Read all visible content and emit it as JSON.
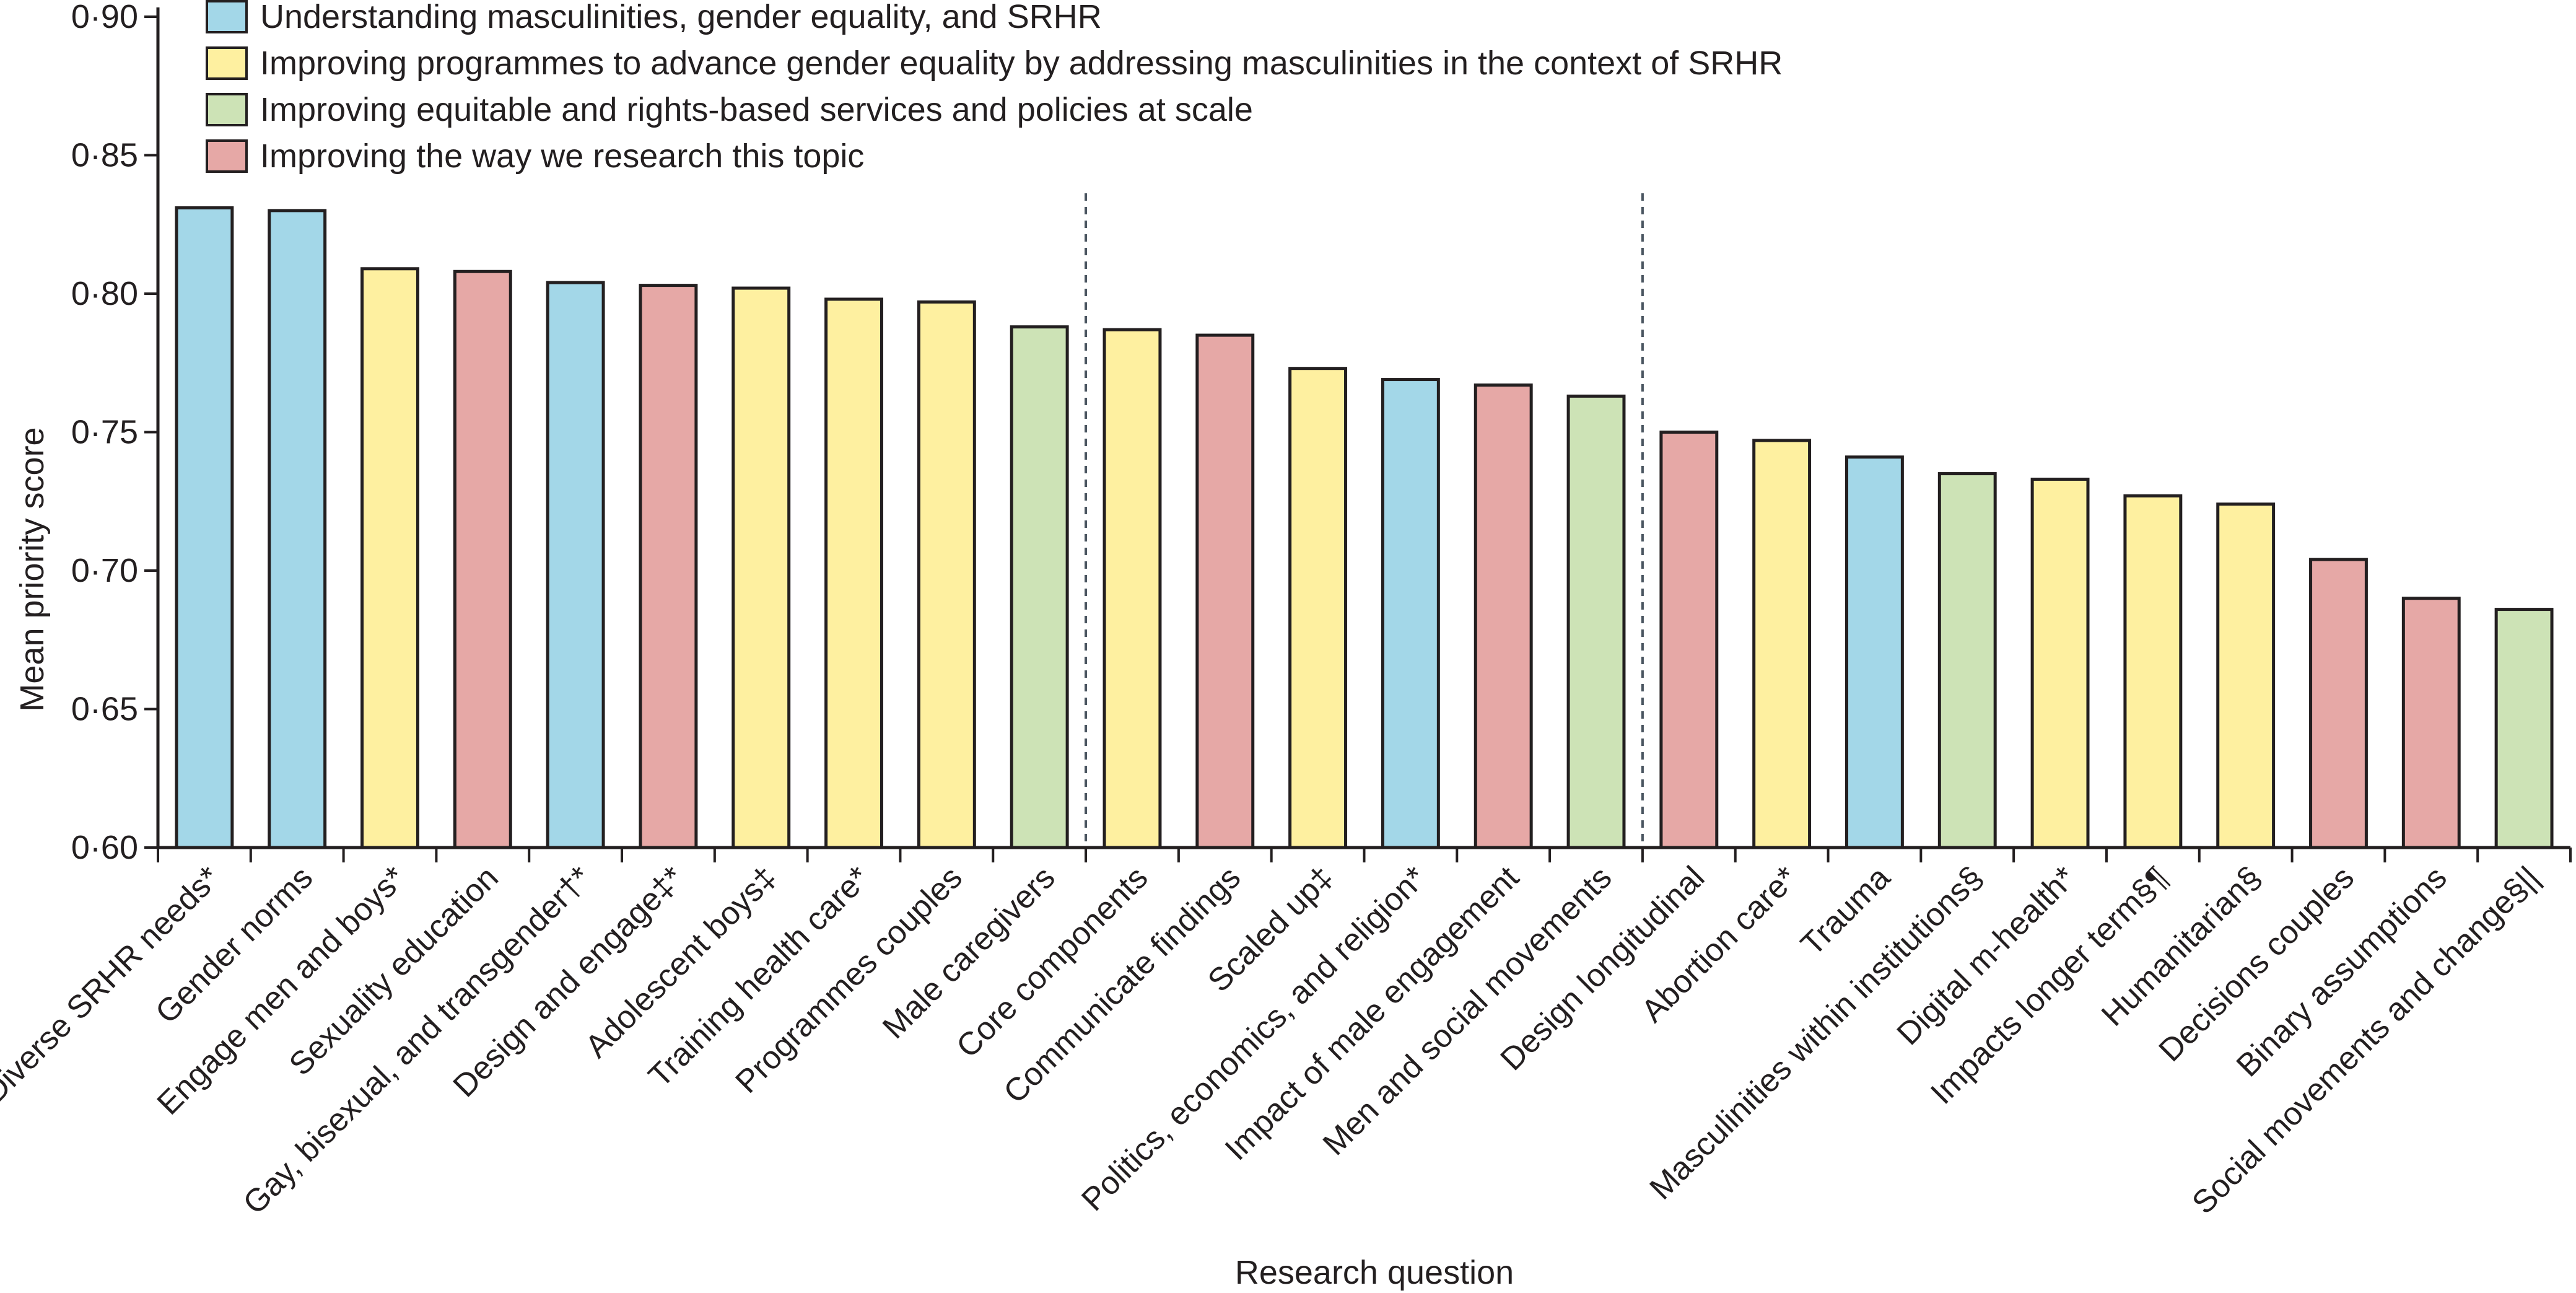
{
  "chart_data": {
    "type": "bar",
    "title": "",
    "xlabel": "Research question",
    "ylabel": "Mean priority score",
    "ylim": [
      0.6,
      0.9
    ],
    "yticks": [
      {
        "value": 0.6,
        "label": "0·60"
      },
      {
        "value": 0.65,
        "label": "0·65"
      },
      {
        "value": 0.7,
        "label": "0·70"
      },
      {
        "value": 0.75,
        "label": "0·75"
      },
      {
        "value": 0.8,
        "label": "0·80"
      },
      {
        "value": 0.85,
        "label": "0·85"
      },
      {
        "value": 0.9,
        "label": "0·90"
      }
    ],
    "grid": false,
    "legend_position": "top-left",
    "legend": [
      {
        "key": "understanding",
        "label": "Understanding masculinities, gender equality, and SRHR",
        "color": "#a3d7e8"
      },
      {
        "key": "programmes",
        "label": "Improving programmes to advance gender equality by addressing masculinities in the context of SRHR",
        "color": "#fef0a0"
      },
      {
        "key": "services",
        "label": "Improving equitable and rights-based services and policies at scale",
        "color": "#cde3b6"
      },
      {
        "key": "research",
        "label": "Improving the way we research this topic",
        "color": "#e6a8a6"
      }
    ],
    "categories": [
      "Diverse SRHR needs*",
      "Gender norms",
      "Engage men and boys*",
      "Sexuality education",
      "Gay, bisexual, and transgender†*",
      "Design and engage‡*",
      "Adolescent boys‡",
      "Training health care*",
      "Programmes couples",
      "Male caregivers",
      "Core components",
      "Communicate findings",
      "Scaled up‡",
      "Politics, economics, and religion*",
      "Impact of male engagement",
      "Men and social movements",
      "Design longitudinal",
      "Abortion care*",
      "Trauma",
      "Masculinities within institutions§",
      "Digital m-health*",
      "Impacts longer term§¶",
      "Humanitarian§",
      "Decisions couples",
      "Binary assumptions",
      "Social movements and change§||"
    ],
    "values": [
      0.831,
      0.83,
      0.809,
      0.808,
      0.804,
      0.803,
      0.802,
      0.798,
      0.797,
      0.788,
      0.787,
      0.785,
      0.773,
      0.769,
      0.767,
      0.763,
      0.75,
      0.747,
      0.741,
      0.735,
      0.733,
      0.727,
      0.724,
      0.704,
      0.69,
      0.686
    ],
    "groups": [
      "understanding",
      "understanding",
      "programmes",
      "research",
      "understanding",
      "research",
      "programmes",
      "programmes",
      "programmes",
      "services",
      "programmes",
      "research",
      "programmes",
      "understanding",
      "research",
      "services",
      "research",
      "programmes",
      "understanding",
      "services",
      "programmes",
      "programmes",
      "programmes",
      "research",
      "research",
      "services"
    ],
    "divider_after_indices": [
      9,
      15
    ]
  }
}
